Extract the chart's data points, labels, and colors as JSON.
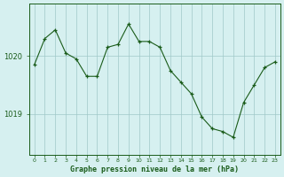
{
  "x": [
    0,
    1,
    2,
    3,
    4,
    5,
    6,
    7,
    8,
    9,
    10,
    11,
    12,
    13,
    14,
    15,
    16,
    17,
    18,
    19,
    20,
    21,
    22,
    23
  ],
  "y": [
    1019.85,
    1020.3,
    1020.45,
    1020.05,
    1019.95,
    1019.65,
    1019.65,
    1020.15,
    1020.2,
    1020.55,
    1020.25,
    1020.25,
    1020.15,
    1019.75,
    1019.55,
    1019.35,
    1018.95,
    1018.75,
    1018.7,
    1018.6,
    1019.2,
    1019.5,
    1019.8,
    1019.9
  ],
  "line_color": "#1a5c1a",
  "marker_color": "#1a5c1a",
  "bg_color": "#d6f0f0",
  "grid_color": "#a0c8c8",
  "axis_color": "#1a5c1a",
  "title": "Graphe pression niveau de la mer (hPa)",
  "xlabel_ticks": [
    "0",
    "1",
    "2",
    "3",
    "4",
    "5",
    "6",
    "7",
    "8",
    "9",
    "10",
    "11",
    "12",
    "13",
    "14",
    "15",
    "16",
    "17",
    "18",
    "19",
    "20",
    "21",
    "22",
    "23"
  ],
  "yticks": [
    1019,
    1020
  ],
  "ylim": [
    1018.3,
    1020.9
  ],
  "xlim": [
    -0.5,
    23.5
  ],
  "figsize": [
    3.2,
    2.0
  ],
  "dpi": 100
}
